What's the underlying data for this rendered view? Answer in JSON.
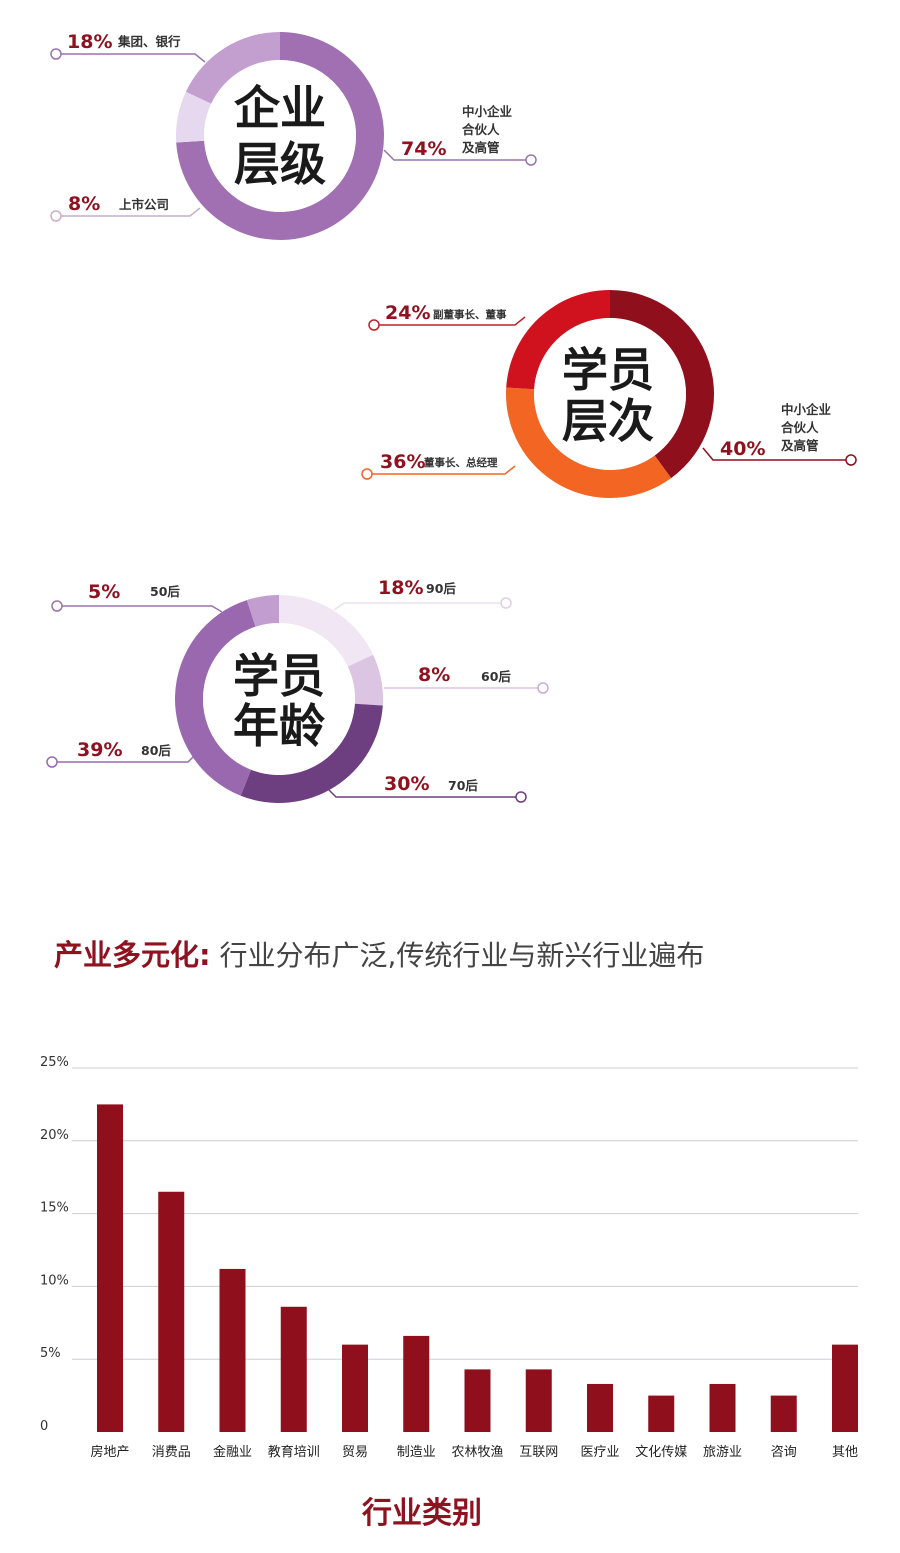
{
  "donuts": [
    {
      "center_lines": [
        "企业",
        "层级"
      ],
      "segments": [
        {
          "percent": "74%",
          "label": [
            "中小企业",
            "合伙人",
            "及高管"
          ],
          "value": 74,
          "color": "#a070b2"
        },
        {
          "percent": "8%",
          "label": [
            "上市公司"
          ],
          "value": 8,
          "color": "#e6d8ee"
        },
        {
          "percent": "18%",
          "label": [
            "集团、银行"
          ],
          "value": 18,
          "color": "#c39fd0"
        }
      ]
    },
    {
      "center_lines": [
        "学员",
        "层次"
      ],
      "segments": [
        {
          "percent": "40%",
          "label": [
            "中小企业",
            "合伙人",
            "及高管"
          ],
          "value": 40,
          "color": "#8f0f1c"
        },
        {
          "percent": "36%",
          "label": [
            "董事长、总经理"
          ],
          "value": 36,
          "color": "#f26522"
        },
        {
          "percent": "24%",
          "label": [
            "副董事长、董事"
          ],
          "value": 24,
          "color": "#d0121f"
        }
      ]
    },
    {
      "center_lines": [
        "学员",
        "年龄"
      ],
      "segments": [
        {
          "percent": "18%",
          "label": [
            "90后"
          ],
          "value": 18,
          "color": "#f1e6f3"
        },
        {
          "percent": "8%",
          "label": [
            "60后"
          ],
          "value": 8,
          "color": "#dcc4e3"
        },
        {
          "percent": "30%",
          "label": [
            "70后"
          ],
          "value": 30,
          "color": "#6e3f80"
        },
        {
          "percent": "39%",
          "label": [
            "80后"
          ],
          "value": 39,
          "color": "#9a68ae"
        },
        {
          "percent": "5%",
          "label": [
            "50后"
          ],
          "value": 5,
          "color": "#c29dd0"
        }
      ]
    }
  ],
  "section_title": {
    "prefix": "产业多元化:",
    "text": " 行业分布广泛,传统行业与新兴行业遍布"
  },
  "chart_data": {
    "type": "bar",
    "categories": [
      "房地产",
      "消费品",
      "金融业",
      "教育培训",
      "贸易",
      "制造业",
      "农林牧渔",
      "互联网",
      "医疗业",
      "文化传媒",
      "旅游业",
      "咨询",
      "其他"
    ],
    "values": [
      22.5,
      16.5,
      11.2,
      8.6,
      6.0,
      6.6,
      4.3,
      4.3,
      3.3,
      2.5,
      3.3,
      2.5,
      6.0
    ],
    "yticks": [
      "0",
      "5%",
      "10%",
      "15%",
      "20%",
      "25%"
    ],
    "ylim": [
      0,
      25
    ],
    "xlabel": "行业类别",
    "ylabel": "",
    "grid": true,
    "bar_color": "#8f0f1c",
    "grid_color": "#cdcdd6"
  }
}
